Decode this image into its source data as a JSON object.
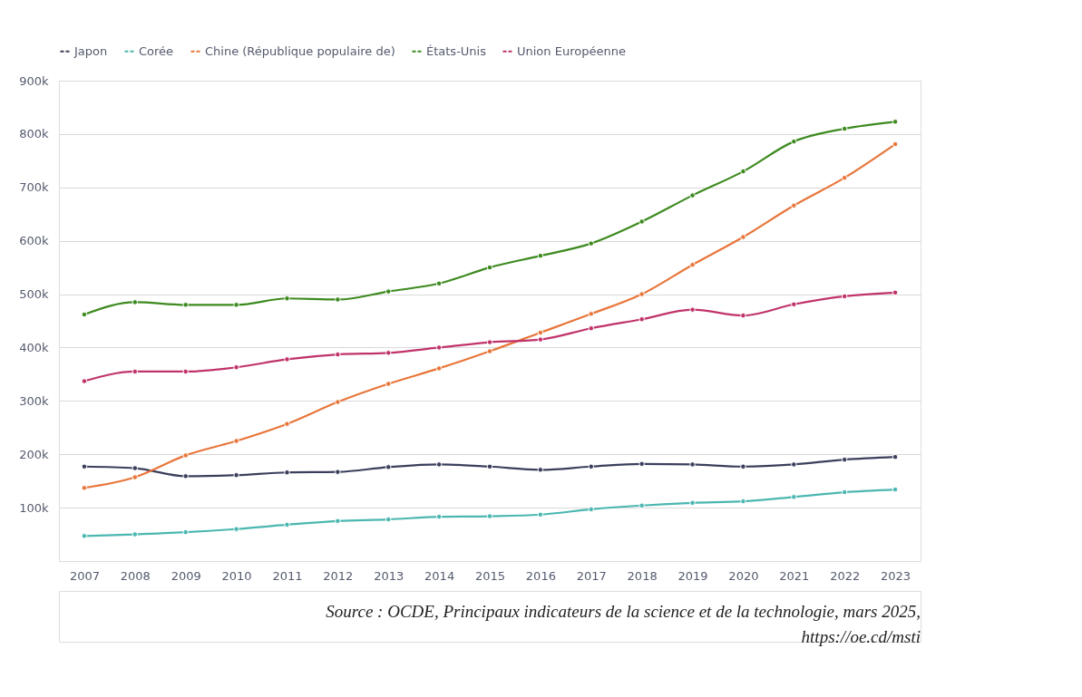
{
  "chart_data": {
    "type": "line",
    "categories": [
      "2007",
      "2008",
      "2009",
      "2010",
      "2011",
      "2012",
      "2013",
      "2014",
      "2015",
      "2016",
      "2017",
      "2018",
      "2019",
      "2020",
      "2021",
      "2022",
      "2023"
    ],
    "series": [
      {
        "name": "Japon",
        "color": "#3b3f5c",
        "values": [
          177000,
          174000,
          159000,
          161000,
          166000,
          167000,
          176000,
          181000,
          177000,
          171000,
          177000,
          182000,
          181000,
          177000,
          181000,
          190000,
          195000
        ]
      },
      {
        "name": "Corée",
        "color": "#4bb7b0",
        "values": [
          47000,
          50000,
          54000,
          60000,
          68000,
          75000,
          78000,
          83000,
          84000,
          87000,
          97000,
          104000,
          109000,
          112000,
          120000,
          129000,
          134000
        ]
      },
      {
        "name": "Chine (République populaire de)",
        "color": "#e8763a",
        "values": [
          137000,
          157000,
          198000,
          225000,
          257000,
          298000,
          332000,
          361000,
          393000,
          428000,
          463000,
          500000,
          555000,
          607000,
          666000,
          718000,
          781000
        ]
      },
      {
        "name": "États-Unis",
        "color": "#3d8a1f",
        "values": [
          462000,
          485000,
          480000,
          480000,
          492000,
          490000,
          505000,
          520000,
          550000,
          572000,
          595000,
          636000,
          685000,
          730000,
          786000,
          810000,
          823000
        ]
      },
      {
        "name": "Union Européenne",
        "color": "#c0336a",
        "values": [
          337000,
          355000,
          355000,
          363000,
          378000,
          387000,
          390000,
          400000,
          410000,
          415000,
          436000,
          453000,
          471000,
          460000,
          481000,
          496000,
          503000
        ]
      }
    ],
    "ylim": [
      0,
      900000
    ],
    "yticks": [
      {
        "value": 100000,
        "label": "100k"
      },
      {
        "value": 200000,
        "label": "200k"
      },
      {
        "value": 300000,
        "label": "300k"
      },
      {
        "value": 400000,
        "label": "400k"
      },
      {
        "value": 500000,
        "label": "500k"
      },
      {
        "value": 600000,
        "label": "600k"
      },
      {
        "value": 700000,
        "label": "700k"
      },
      {
        "value": 800000,
        "label": "800k"
      },
      {
        "value": 900000,
        "label": "900k"
      }
    ],
    "grid": "y",
    "legend": "top left",
    "marker": "circle",
    "line_style": "solid",
    "annotations": [
      "Source : OCDE, Principaux indicateurs de la science et de la technologie, mars 2025,",
      "https://oe.cd/msti"
    ]
  }
}
